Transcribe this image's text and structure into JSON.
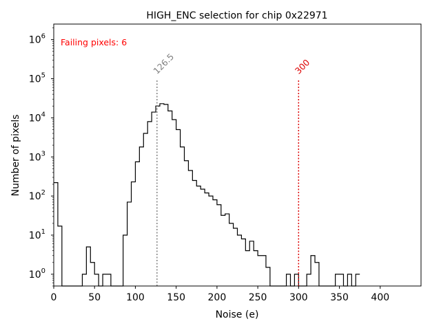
{
  "chart_data": {
    "type": "histogram",
    "title": "HIGH_ENC selection for chip 0x22971",
    "xlabel": "Noise (e)",
    "ylabel": "Number of pixels",
    "xlim": [
      0,
      450
    ],
    "ylim": [
      0.5,
      2500000
    ],
    "yscale": "log",
    "x_ticks": [
      0,
      50,
      100,
      150,
      200,
      250,
      300,
      350,
      400
    ],
    "y_ticks": [
      {
        "value": 1,
        "base": "10",
        "exp": "0"
      },
      {
        "value": 10,
        "base": "10",
        "exp": "1"
      },
      {
        "value": 100,
        "base": "10",
        "exp": "2"
      },
      {
        "value": 1000,
        "base": "10",
        "exp": "3"
      },
      {
        "value": 10000,
        "base": "10",
        "exp": "4"
      },
      {
        "value": 100000,
        "base": "10",
        "exp": "5"
      },
      {
        "value": 1000000,
        "base": "10",
        "exp": "6"
      }
    ],
    "bin_width": 5,
    "bin_start": 0,
    "counts": [
      220,
      17,
      0,
      0,
      0,
      0,
      0,
      1,
      5,
      2,
      1,
      0,
      1,
      1,
      0,
      0,
      0,
      10,
      70,
      230,
      750,
      1800,
      4000,
      8000,
      14000,
      20000,
      23000,
      22000,
      15000,
      9000,
      5000,
      1800,
      800,
      450,
      250,
      180,
      150,
      120,
      100,
      80,
      60,
      32,
      35,
      20,
      15,
      10,
      8,
      4,
      7,
      4,
      3,
      3,
      1.5,
      0,
      0,
      0,
      0,
      1,
      0,
      1,
      0,
      0,
      1,
      3,
      2,
      0,
      0,
      0,
      0,
      1,
      1,
      0,
      1,
      0,
      1
    ],
    "line_color": "#000000",
    "annotation": {
      "text": "Failing pixels: 6",
      "color": "#ff0000"
    },
    "vlines": [
      {
        "x": 126.5,
        "label": "126.5",
        "color": "#808080",
        "ymax": 100000
      },
      {
        "x": 300,
        "label": "300",
        "color": "#dd0000",
        "ymax": 100000
      }
    ]
  }
}
